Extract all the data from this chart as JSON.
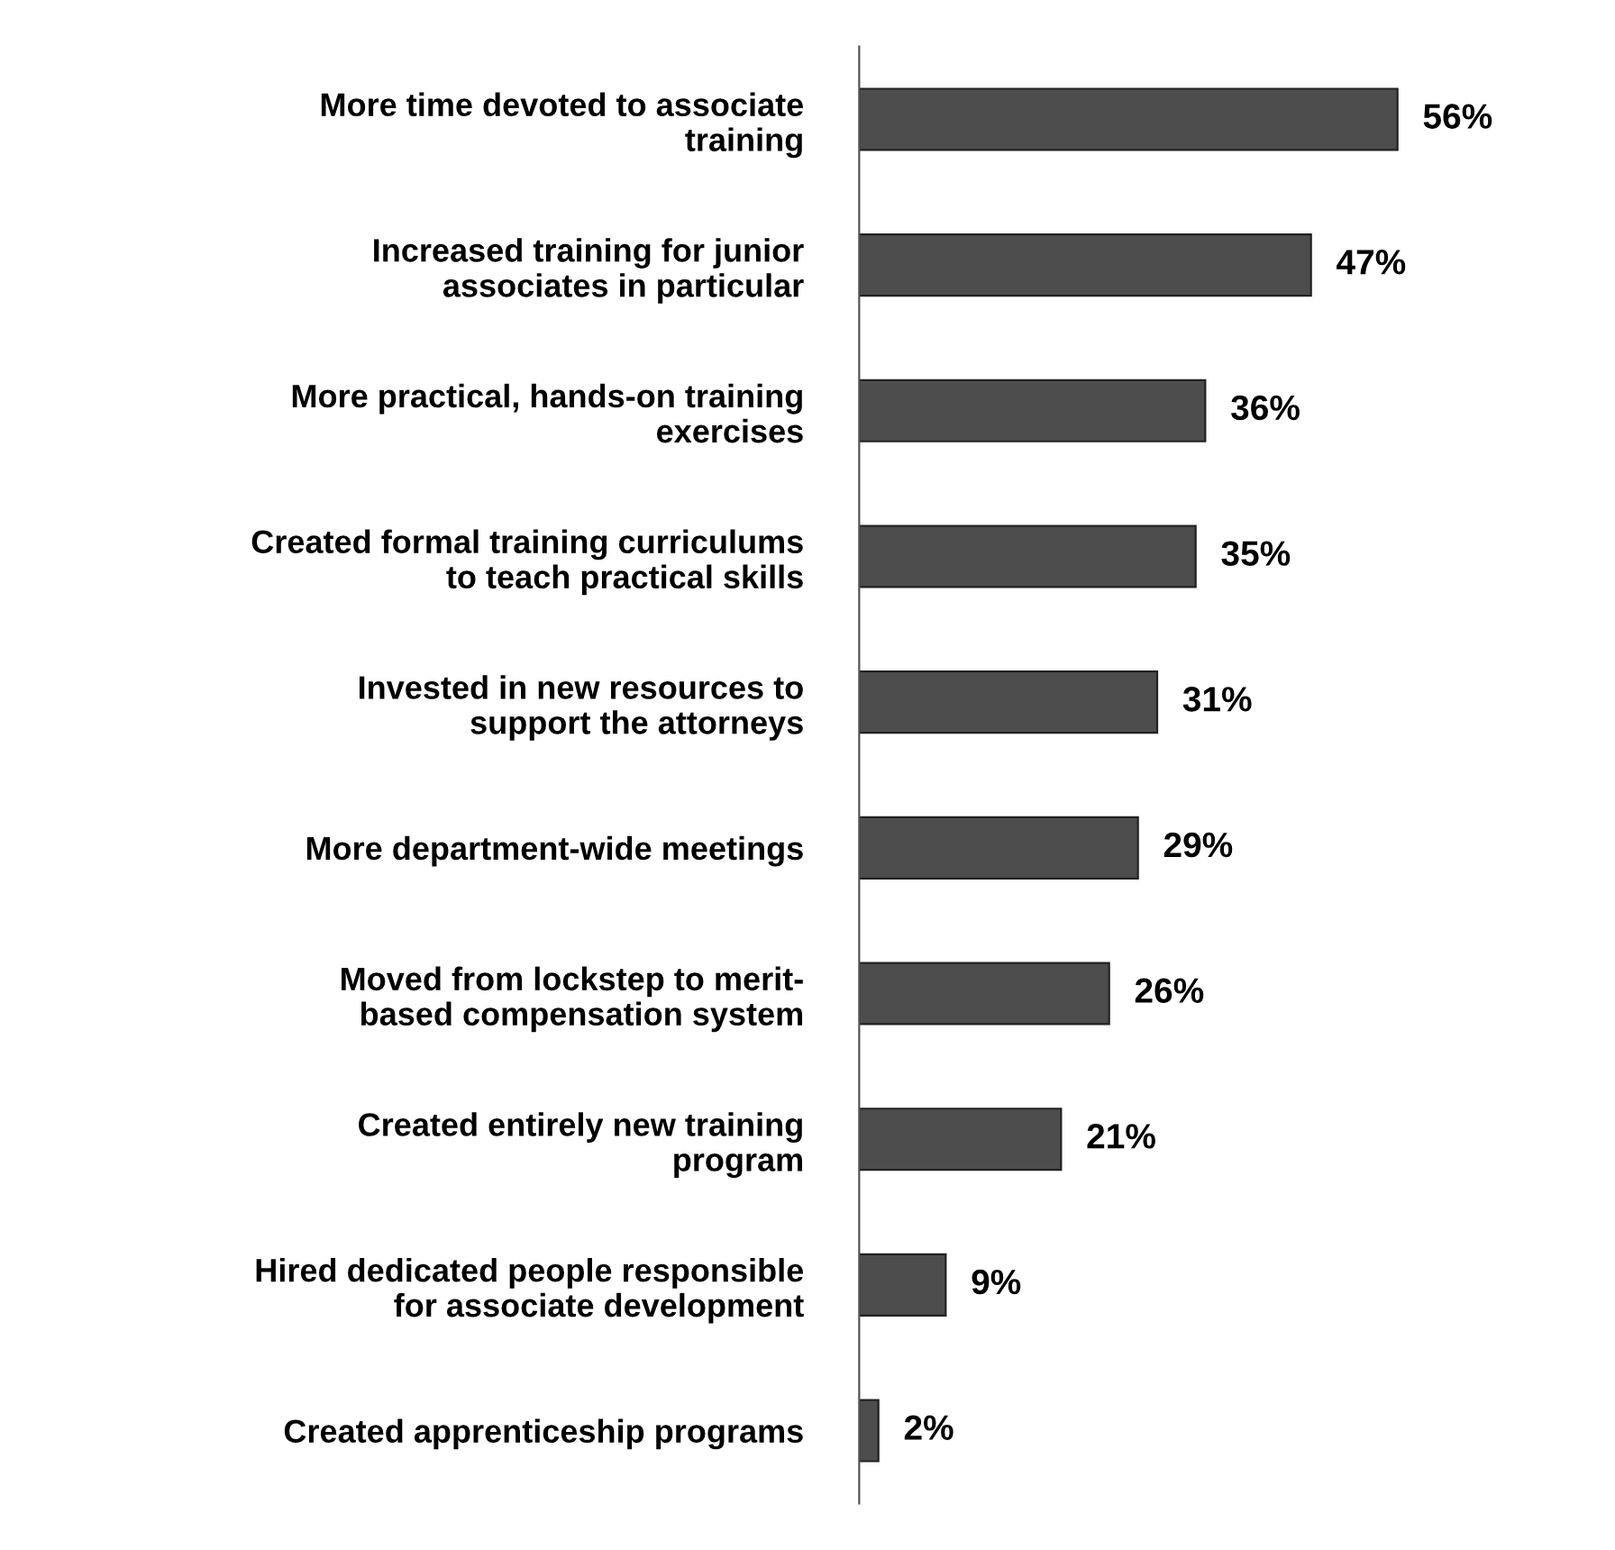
{
  "chart_data": {
    "type": "bar",
    "orientation": "horizontal",
    "categories": [
      "More time devoted to associate\ntraining",
      "Increased training for junior\nassociates in particular",
      "More practical, hands-on training\nexercises",
      "Created formal training curriculums\nto teach practical skills",
      "Invested in new resources to\nsupport the attorneys",
      "More department-wide meetings",
      "Moved from lockstep to merit-\nbased compensation system",
      "Created entirely new training\nprogram",
      "Hired dedicated people responsible\nfor associate development",
      "Created apprenticeship programs"
    ],
    "values": [
      56,
      47,
      36,
      35,
      31,
      29,
      26,
      21,
      9,
      2
    ],
    "value_labels": [
      "56%",
      "47%",
      "36%",
      "35%",
      "31%",
      "29%",
      "26%",
      "21%",
      "9%",
      "2%"
    ],
    "color": "#4d4d4d",
    "grid": false,
    "legend": false
  }
}
